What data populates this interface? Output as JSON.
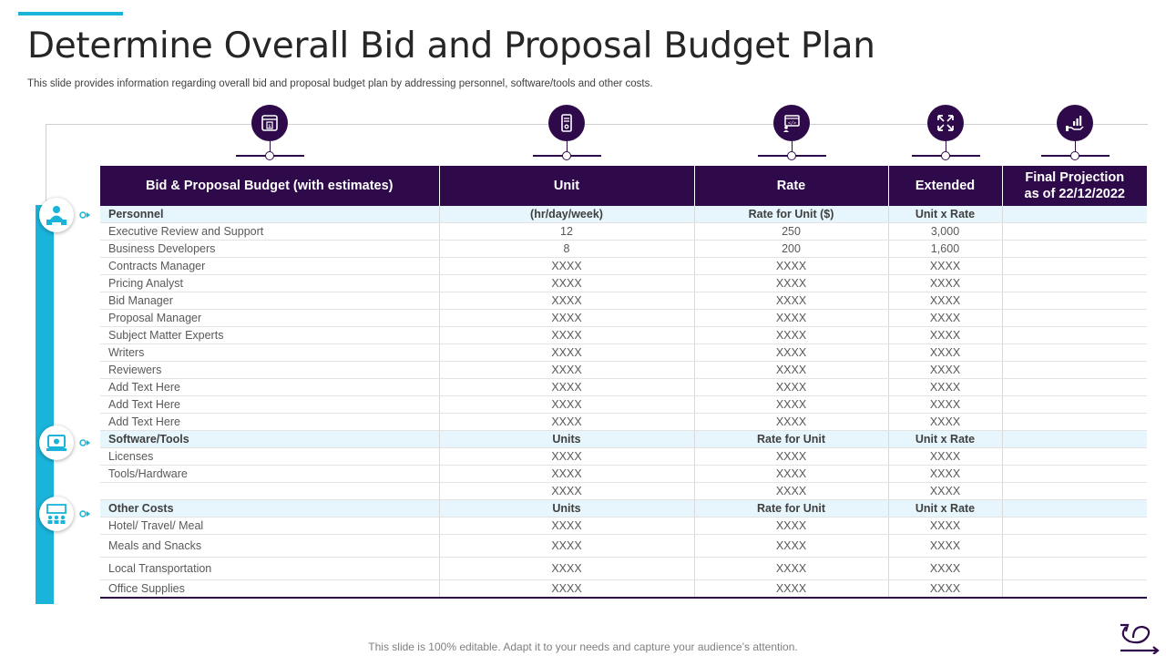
{
  "slide": {
    "title": "Determine Overall Bid and Proposal Budget Plan",
    "subtitle": "This slide provides information regarding overall bid and proposal budget plan by addressing personnel, software/tools and other costs.",
    "footer": "This slide is 100% editable. Adapt it to your needs and capture your audience’s attention.",
    "accent_color": "#1ab3d9",
    "header_color": "#2e0a4a"
  },
  "columns": {
    "c0": "Bid & Proposal Budget (with estimates)",
    "c1": "Unit",
    "c2": "Rate",
    "c3": "Extended",
    "c4_line1": "Final Projection",
    "c4_line2": "as of 22/12/2022"
  },
  "column_icons": [
    "budget-document-icon",
    "server-icon",
    "code-window-user-icon",
    "expand-arrows-icon",
    "hand-chart-icon"
  ],
  "side_icons": [
    "personnel-group-icon",
    "software-tools-icon",
    "other-costs-icon"
  ],
  "rows": [
    {
      "section": true,
      "c0": "Personnel",
      "c1": "(hr/day/week)",
      "c2": "Rate for Unit ($)",
      "c3": "Unit x Rate",
      "c4": ""
    },
    {
      "c0": "Executive Review  and Support",
      "c1": "12",
      "c2": "250",
      "c3": "3,000",
      "c4": ""
    },
    {
      "c0": "Business Developers",
      "c1": "8",
      "c2": "200",
      "c3": "1,600",
      "c4": ""
    },
    {
      "c0": "Contracts Manager",
      "c1": "XXXX",
      "c2": "XXXX",
      "c3": "XXXX",
      "c4": ""
    },
    {
      "c0": "Pricing Analyst",
      "c1": "XXXX",
      "c2": "XXXX",
      "c3": "XXXX",
      "c4": ""
    },
    {
      "c0": "Bid Manager",
      "c1": "XXXX",
      "c2": "XXXX",
      "c3": "XXXX",
      "c4": ""
    },
    {
      "c0": "Proposal Manager",
      "c1": "XXXX",
      "c2": "XXXX",
      "c3": "XXXX",
      "c4": ""
    },
    {
      "c0": "Subject Matter Experts",
      "c1": "XXXX",
      "c2": "XXXX",
      "c3": "XXXX",
      "c4": ""
    },
    {
      "c0": "Writers",
      "c1": "XXXX",
      "c2": "XXXX",
      "c3": "XXXX",
      "c4": ""
    },
    {
      "c0": "Reviewers",
      "c1": "XXXX",
      "c2": "XXXX",
      "c3": "XXXX",
      "c4": ""
    },
    {
      "c0": "Add Text Here",
      "c1": "XXXX",
      "c2": "XXXX",
      "c3": "XXXX",
      "c4": ""
    },
    {
      "c0": "Add Text Here",
      "c1": "XXXX",
      "c2": "XXXX",
      "c3": "XXXX",
      "c4": ""
    },
    {
      "c0": "Add Text Here",
      "c1": "XXXX",
      "c2": "XXXX",
      "c3": "XXXX",
      "c4": ""
    },
    {
      "section": true,
      "c0": "Software/Tools",
      "c1": "Units",
      "c2": "Rate for Unit",
      "c3": "Unit x Rate",
      "c4": ""
    },
    {
      "c0": "Licenses",
      "c1": "XXXX",
      "c2": "XXXX",
      "c3": "XXXX",
      "c4": ""
    },
    {
      "c0": "Tools/Hardware",
      "c1": "XXXX",
      "c2": "XXXX",
      "c3": "XXXX",
      "c4": ""
    },
    {
      "c0": "",
      "c1": "XXXX",
      "c2": "XXXX",
      "c3": "XXXX",
      "c4": ""
    },
    {
      "section": true,
      "c0": "Other Costs",
      "c1": "Units",
      "c2": "Rate for Unit",
      "c3": "Unit x Rate",
      "c4": ""
    },
    {
      "c0": "Hotel/ Travel/  Meal",
      "c1": "XXXX",
      "c2": "XXXX",
      "c3": "XXXX",
      "c4": ""
    },
    {
      "tall": true,
      "c0": "Meals and Snacks",
      "c1": "XXXX",
      "c2": "XXXX",
      "c3": "XXXX",
      "c4": ""
    },
    {
      "tall": true,
      "c0": "Local Transportation",
      "c1": "XXXX",
      "c2": "XXXX",
      "c3": "XXXX",
      "c4": ""
    },
    {
      "last": true,
      "c0": "Office Supplies",
      "c1": "XXXX",
      "c2": "XXXX",
      "c3": "XXXX",
      "c4": ""
    }
  ]
}
